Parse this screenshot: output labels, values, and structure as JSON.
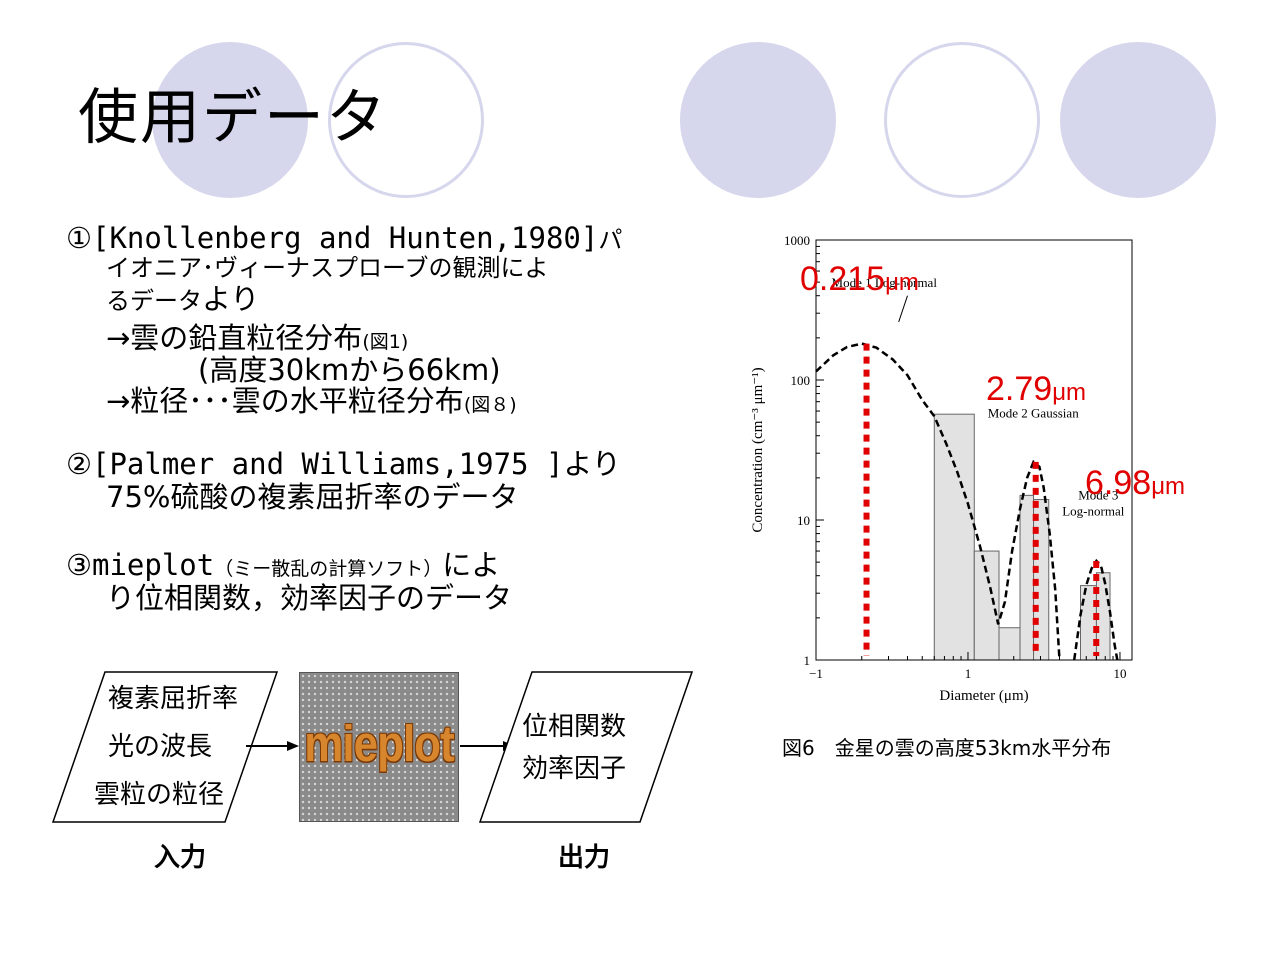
{
  "slide": {
    "title": "使用データ",
    "accent_color": "#d6d6ec"
  },
  "list": {
    "item1": {
      "line1_a": "①[Knollenberg and Hunten,1980]",
      "line1_b": "パ",
      "line2": "イオニア･ヴィーナスプローブの観測によ",
      "line3_a": "るデータ",
      "line3_b": "より",
      "sub1_a": "→雲の鉛直粒径分布",
      "sub1_b": "(図1)",
      "sub2": "(高度30kmから66km)",
      "sub3_a": "→粒径･･･雲の水平粒径分布",
      "sub3_b": "(図８)"
    },
    "item2": {
      "line1_a": "②[Palmer and Williams,1975 ]",
      "line1_b": "より",
      "line2": "75%硫酸の複素屈折率のデータ"
    },
    "item3": {
      "line1_a": "③mieplot",
      "line1_b": "（ミー散乱の計算ソフト）",
      "line1_c": "によ",
      "line2": "り位相関数，効率因子のデータ"
    }
  },
  "flow": {
    "inputs": [
      "複素屈折率",
      "光の波長",
      "雲粒の粒径"
    ],
    "process": "mieplot",
    "outputs": [
      "位相関数",
      "効率因子"
    ],
    "input_label": "入力",
    "output_label": "出力"
  },
  "chart_data": {
    "type": "histogram-line",
    "scale": "log-log",
    "xlabel": "Diameter (μm)",
    "ylabel": "Concentration (cm⁻³ μm⁻¹)",
    "x_ticks": [
      "−1",
      "1",
      "10"
    ],
    "y_ticks": [
      "1",
      "10",
      "100",
      "1000"
    ],
    "xlim": [
      0.1,
      12
    ],
    "ylim": [
      1,
      1000
    ],
    "bars": [
      {
        "x0": 0.6,
        "x1": 1.1,
        "value": 57
      },
      {
        "x0": 1.1,
        "x1": 1.6,
        "value": 6
      },
      {
        "x0": 1.6,
        "x1": 2.2,
        "value": 1.7
      },
      {
        "x0": 2.2,
        "x1": 2.7,
        "value": 15
      },
      {
        "x0": 2.7,
        "x1": 3.4,
        "value": 14
      },
      {
        "x0": 5.5,
        "x1": 7.0,
        "value": 3.4
      },
      {
        "x0": 7.0,
        "x1": 8.6,
        "value": 4.2
      }
    ],
    "mode_curve": [
      [
        0.1,
        115
      ],
      [
        0.13,
        150
      ],
      [
        0.16,
        172
      ],
      [
        0.2,
        182
      ],
      [
        0.25,
        170
      ],
      [
        0.32,
        140
      ],
      [
        0.4,
        108
      ],
      [
        0.5,
        72
      ],
      [
        0.6,
        55
      ],
      [
        0.72,
        35
      ],
      [
        0.85,
        22
      ],
      [
        1.0,
        13
      ],
      [
        1.2,
        6.5
      ],
      [
        1.4,
        3.3
      ],
      [
        1.58,
        1.8
      ],
      [
        1.75,
        2.6
      ],
      [
        1.95,
        6
      ],
      [
        2.2,
        12
      ],
      [
        2.45,
        20
      ],
      [
        2.7,
        26
      ],
      [
        2.95,
        24
      ],
      [
        3.15,
        17
      ],
      [
        3.45,
        8
      ],
      [
        3.75,
        3.2
      ],
      [
        4.0,
        1.0
      ]
    ],
    "mode3_curve": [
      [
        5.0,
        1.0
      ],
      [
        5.5,
        2.1
      ],
      [
        6.0,
        3.4
      ],
      [
        6.5,
        4.5
      ],
      [
        7.0,
        5.1
      ],
      [
        7.5,
        4.7
      ],
      [
        8.0,
        3.5
      ],
      [
        8.6,
        2.2
      ],
      [
        9.2,
        1.3
      ],
      [
        9.6,
        1.0
      ]
    ],
    "annotations": [
      {
        "text": "Mode 1 Log-normal",
        "x": 0.215
      },
      {
        "text": "Mode 2 Gaussian",
        "x": 2.79
      },
      {
        "text": "Mode 3",
        "x": 6.98
      },
      {
        "text": "Log-normal",
        "x": 6.98
      }
    ],
    "markers": [
      {
        "x": 0.215,
        "peak": 182,
        "label": "0.215μm"
      },
      {
        "x": 2.79,
        "peak": 26,
        "label": "2.79μm"
      },
      {
        "x": 6.98,
        "peak": 5.1,
        "label": "6.98μm"
      }
    ],
    "marker_color": "#e00000",
    "bar_fill": "#e2e2e2",
    "caption": "図6　金星の雲の高度53km水平分布"
  }
}
